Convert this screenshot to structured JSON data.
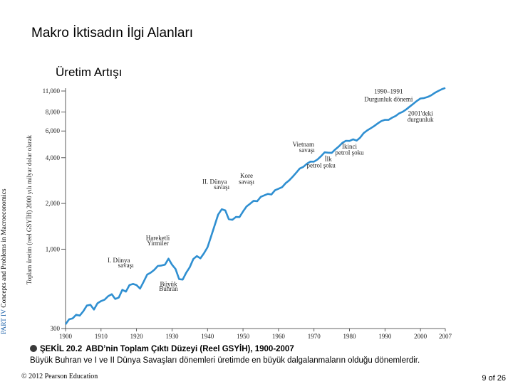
{
  "slide": {
    "title": "Makro İktisadın İlgi Alanları",
    "side_label_part": "PART IV",
    "side_label_text": "Concepts and Problems in Macroeconomics",
    "copyright": "© 2012 Pearson Education",
    "page": "9 of 26"
  },
  "caption": {
    "figure_number": "ŞEKİL 20.2",
    "figure_title": "ABD’nin Toplam Çıktı Düzeyi (Reel GSYİH), 1900-2007",
    "description": "Büyük Buhran ve I ve II Dünya Savaşları dönemleri üretimde en büyük dalgalanmaların olduğu dönemlerdir."
  },
  "chart_data": {
    "type": "line",
    "title": "Üretim Artışı",
    "xlabel": "",
    "ylabel": "Toplam üretim (reel GSYİH) 2000 yılı milyar dolar olarak",
    "y_scale": "log",
    "ylim": [
      300,
      11000
    ],
    "xlim": [
      1900,
      2007
    ],
    "x_ticks": [
      1900,
      1910,
      1920,
      1930,
      1940,
      1950,
      1960,
      1970,
      1980,
      1990,
      2000,
      2007
    ],
    "x_tick_labels": [
      "1900",
      "1910",
      "1920",
      "1930",
      "1940",
      "1950",
      "1960",
      "1970",
      "1980",
      "1990",
      "2000",
      "2007"
    ],
    "y_ticks": [
      300,
      1000,
      2000,
      4000,
      6000,
      8000,
      11000
    ],
    "y_tick_labels": [
      "300",
      "1,000",
      "2,000",
      "4,000",
      "6,000",
      "8,000",
      "11,000"
    ],
    "line_color": "#2f8fd1",
    "series": [
      {
        "x": [
          1900,
          1901,
          1902,
          1903,
          1904,
          1905,
          1906,
          1907,
          1908,
          1909,
          1910,
          1911,
          1912,
          1913,
          1914,
          1915,
          1916,
          1917,
          1918,
          1919,
          1920,
          1921,
          1922,
          1923,
          1924,
          1925,
          1926,
          1927,
          1928,
          1929,
          1930,
          1931,
          1932,
          1933,
          1934,
          1935,
          1936,
          1937,
          1938,
          1939,
          1940,
          1941,
          1942,
          1943,
          1944,
          1945,
          1946,
          1947,
          1948,
          1949,
          1950,
          1951,
          1952,
          1953,
          1954,
          1955,
          1956,
          1957,
          1958,
          1959,
          1960,
          1961,
          1962,
          1963,
          1964,
          1965,
          1966,
          1967,
          1968,
          1969,
          1970,
          1971,
          1972,
          1973,
          1974,
          1975,
          1976,
          1977,
          1978,
          1979,
          1980,
          1981,
          1982,
          1983,
          1984,
          1985,
          1986,
          1987,
          1988,
          1989,
          1990,
          1991,
          1992,
          1993,
          1994,
          1995,
          1996,
          1997,
          1998,
          1999,
          2000,
          2001,
          2002,
          2003,
          2004,
          2005,
          2006,
          2007
        ],
        "values": [
          320,
          345,
          350,
          370,
          365,
          390,
          425,
          430,
          400,
          440,
          455,
          465,
          490,
          505,
          470,
          480,
          540,
          525,
          580,
          590,
          580,
          550,
          610,
          680,
          700,
          730,
          775,
          780,
          790,
          865,
          790,
          740,
          635,
          630,
          700,
          760,
          860,
          900,
          870,
          940,
          1030,
          1210,
          1430,
          1690,
          1830,
          1800,
          1575,
          1560,
          1630,
          1625,
          1770,
          1910,
          1990,
          2080,
          2070,
          2210,
          2260,
          2310,
          2290,
          2440,
          2500,
          2560,
          2715,
          2835,
          3000,
          3190,
          3400,
          3480,
          3650,
          3770,
          3770,
          3900,
          4100,
          4340,
          4320,
          4310,
          4540,
          4750,
          5010,
          5170,
          5160,
          5290,
          5190,
          5420,
          5810,
          6050,
          6260,
          6480,
          6740,
          6980,
          7110,
          7100,
          7340,
          7530,
          7840,
          8030,
          8330,
          8700,
          9070,
          9470,
          9820,
          9890,
          10050,
          10300,
          10680,
          11000,
          11300,
          11520
        ]
      }
    ],
    "annotations": [
      {
        "text": "1990–1991",
        "x": 1991,
        "y": 10600
      },
      {
        "text": "Durgunluk dönemi",
        "x": 1991,
        "y": 9400
      },
      {
        "text": "2001'deki",
        "x": 2000,
        "y": 7600
      },
      {
        "text": "durgunluk",
        "x": 2000,
        "y": 6900
      },
      {
        "text": "Vietnam",
        "x": 1967,
        "y": 4750
      },
      {
        "text": "savaşı",
        "x": 1968,
        "y": 4350
      },
      {
        "text": "İkinci",
        "x": 1980,
        "y": 4600
      },
      {
        "text": "petrol şoku",
        "x": 1980,
        "y": 4200
      },
      {
        "text": "İlk",
        "x": 1974,
        "y": 3800
      },
      {
        "text": "petrol şoku",
        "x": 1972,
        "y": 3450
      },
      {
        "text": "Kore",
        "x": 1951,
        "y": 2950
      },
      {
        "text": "savaşı",
        "x": 1951,
        "y": 2700
      },
      {
        "text": "II. Dünya",
        "x": 1942,
        "y": 2700
      },
      {
        "text": "savaşı",
        "x": 1944,
        "y": 2480
      },
      {
        "text": "Hareketli",
        "x": 1926,
        "y": 1150
      },
      {
        "text": "Yirmiler",
        "x": 1926,
        "y": 1060
      },
      {
        "text": "I. Dünya",
        "x": 1915,
        "y": 820
      },
      {
        "text": "savaşı",
        "x": 1917,
        "y": 760
      },
      {
        "text": "Büyük",
        "x": 1929,
        "y": 570
      },
      {
        "text": "Buhran",
        "x": 1929,
        "y": 530
      }
    ],
    "grid": false,
    "legend": "none"
  }
}
